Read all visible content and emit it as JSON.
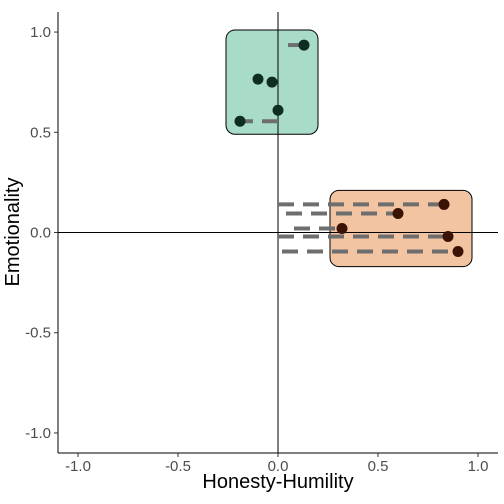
{
  "chart_data": {
    "type": "scatter",
    "title": "",
    "xlabel": "Honesty-Humility",
    "ylabel": "Emotionality",
    "xlim": [
      -1.1,
      1.1
    ],
    "ylim": [
      -1.1,
      1.1
    ],
    "x_ticks": [
      -1.0,
      -0.5,
      0.0,
      0.5,
      1.0
    ],
    "x_tick_labels": [
      "-1.0",
      "-0.5",
      "0.0",
      "0.5",
      "1.0"
    ],
    "y_ticks": [
      -1.0,
      -0.5,
      0.0,
      0.5,
      1.0
    ],
    "y_tick_labels": [
      "-1.0",
      "-0.5",
      "0.0",
      "0.5",
      "1.0"
    ],
    "grid": false,
    "reference_lines": {
      "x": 0,
      "y": 0
    },
    "groups": [
      {
        "box": {
          "xmin": -0.26,
          "xmax": 0.2,
          "ymin": 0.49,
          "ymax": 1.01
        },
        "box_fill": "#a8dcc9",
        "point_color": "#0f2e22",
        "points": [
          {
            "x": 0.13,
            "y": 0.935,
            "line_from_x": 0.05
          },
          {
            "x": -0.1,
            "y": 0.765,
            "line_from_x": -0.1
          },
          {
            "x": -0.03,
            "y": 0.75,
            "line_from_x": -0.03
          },
          {
            "x": 0.0,
            "y": 0.61,
            "line_from_x": 0.0
          },
          {
            "x": -0.19,
            "y": 0.555,
            "line_from_x": 0.0
          }
        ]
      },
      {
        "box": {
          "xmin": 0.26,
          "xmax": 0.97,
          "ymin": -0.17,
          "ymax": 0.21
        },
        "box_fill": "#f3c4a1",
        "point_color": "#3a1305",
        "points": [
          {
            "x": 0.83,
            "y": 0.14,
            "line_from_x": 0.0
          },
          {
            "x": 0.6,
            "y": 0.095,
            "line_from_x": 0.04
          },
          {
            "x": 0.32,
            "y": 0.02,
            "line_from_x": 0.08
          },
          {
            "x": 0.85,
            "y": -0.02,
            "line_from_x": 0.0
          },
          {
            "x": 0.9,
            "y": -0.095,
            "line_from_x": 0.02
          }
        ]
      }
    ],
    "line_color": "#6e6e6e"
  }
}
